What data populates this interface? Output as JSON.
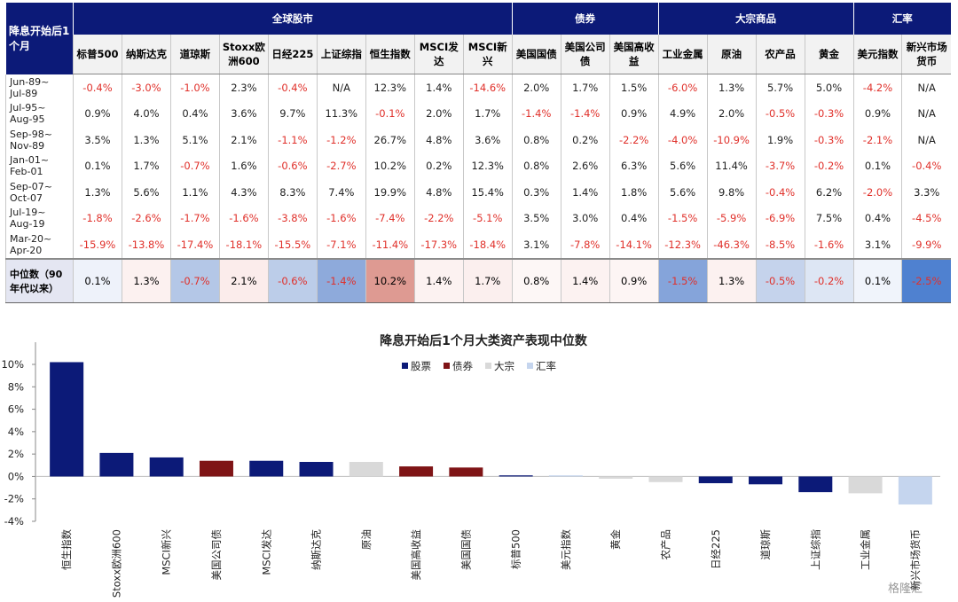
{
  "table": {
    "corner": "降息开始后1个月",
    "groups": [
      {
        "label": "全球股市",
        "columns": [
          "标普500",
          "纳斯达克",
          "道琼斯",
          "Stoxx欧洲600",
          "日经225",
          "上证综指",
          "恒生指数",
          "MSCI发达",
          "MSCI新兴"
        ]
      },
      {
        "label": "债券",
        "columns": [
          "美国国债",
          "美国公司债",
          "美国高收益"
        ]
      },
      {
        "label": "大宗商品",
        "columns": [
          "工业金属",
          "原油",
          "农产品",
          "黄金"
        ]
      },
      {
        "label": "汇率",
        "columns": [
          "美元指数",
          "新兴市场货币"
        ]
      }
    ],
    "rows": [
      {
        "label": "Jun-89~\nJul-89",
        "cells": [
          "-0.4%",
          "-3.0%",
          "-1.0%",
          "2.3%",
          "-0.4%",
          "N/A",
          "12.3%",
          "1.4%",
          "-14.6%",
          "2.0%",
          "1.7%",
          "1.5%",
          "-6.0%",
          "1.3%",
          "5.7%",
          "5.0%",
          "-4.2%",
          "N/A"
        ]
      },
      {
        "label": "Jul-95~\nAug-95",
        "cells": [
          "0.9%",
          "4.0%",
          "0.4%",
          "3.6%",
          "9.7%",
          "11.3%",
          "-0.1%",
          "2.0%",
          "1.7%",
          "-1.4%",
          "-1.4%",
          "0.9%",
          "4.9%",
          "2.0%",
          "-0.5%",
          "-0.3%",
          "0.9%",
          "N/A"
        ]
      },
      {
        "label": "Sep-98~\nNov-89",
        "cells": [
          "3.5%",
          "1.3%",
          "5.1%",
          "2.1%",
          "-1.1%",
          "-1.2%",
          "26.7%",
          "4.8%",
          "3.6%",
          "0.8%",
          "0.2%",
          "-2.2%",
          "-4.0%",
          "-10.9%",
          "1.9%",
          "-0.3%",
          "-2.1%",
          "N/A"
        ]
      },
      {
        "label": "Jan-01~\nFeb-01",
        "cells": [
          "0.1%",
          "1.7%",
          "-0.7%",
          "1.6%",
          "-0.6%",
          "-2.7%",
          "10.2%",
          "0.2%",
          "12.3%",
          "0.8%",
          "2.6%",
          "6.3%",
          "5.6%",
          "11.4%",
          "-3.7%",
          "-0.2%",
          "0.1%",
          "-0.4%"
        ]
      },
      {
        "label": "Sep-07~\nOct-07",
        "cells": [
          "1.3%",
          "5.6%",
          "1.1%",
          "4.3%",
          "8.3%",
          "7.4%",
          "19.9%",
          "4.8%",
          "15.4%",
          "0.3%",
          "1.4%",
          "1.8%",
          "5.6%",
          "9.8%",
          "-0.4%",
          "6.2%",
          "-2.0%",
          "3.3%"
        ]
      },
      {
        "label": "Jul-19~\nAug-19",
        "cells": [
          "-1.8%",
          "-2.6%",
          "-1.7%",
          "-1.6%",
          "-3.8%",
          "-1.6%",
          "-7.4%",
          "-2.2%",
          "-5.1%",
          "3.5%",
          "3.0%",
          "0.4%",
          "-1.5%",
          "-5.9%",
          "-6.9%",
          "7.5%",
          "0.4%",
          "-4.5%"
        ]
      },
      {
        "label": "Mar-20~\nApr-20",
        "cells": [
          "-15.9%",
          "-13.8%",
          "-17.4%",
          "-18.1%",
          "-15.5%",
          "-7.1%",
          "-11.4%",
          "-17.3%",
          "-18.4%",
          "3.1%",
          "-7.8%",
          "-14.1%",
          "-12.3%",
          "-46.3%",
          "-8.5%",
          "-1.6%",
          "3.1%",
          "-9.9%"
        ]
      }
    ],
    "median": {
      "label": "中位数（90年代以来）",
      "cells": [
        "0.1%",
        "1.3%",
        "-0.7%",
        "2.1%",
        "-0.6%",
        "-1.4%",
        "10.2%",
        "1.4%",
        "1.7%",
        "0.8%",
        "1.4%",
        "0.9%",
        "-1.5%",
        "1.3%",
        "-0.5%",
        "-0.2%",
        "0.1%",
        "-2.5%"
      ],
      "colors": [
        "#eef2fa",
        "#fcf1f0",
        "#b4c7e7",
        "#fbeceb",
        "#bccde9",
        "#8eaadb",
        "#de9a92",
        "#fcf2f1",
        "#fbefee",
        "#fdf7f6",
        "#fcf2f1",
        "#fdf5f4",
        "#85a4da",
        "#fcf1f0",
        "#c5d3ec",
        "#dde6f4",
        "#f0f4fb",
        "#4f81d0"
      ]
    }
  },
  "chart_data": {
    "type": "bar",
    "title": "降息开始后1个月大类资产表现中位数",
    "legend": [
      {
        "name": "股票",
        "color": "#0c1a78"
      },
      {
        "name": "债券",
        "color": "#7f1416"
      },
      {
        "name": "大宗",
        "color": "#d9d9d9"
      },
      {
        "name": "汇率",
        "color": "#c5d5ee"
      }
    ],
    "categories": [
      "恒生指数",
      "Stoxx欧洲600",
      "MSCI新兴",
      "美国公司债",
      "MSCI发达",
      "纳斯达克",
      "原油",
      "美国高收益",
      "美国国债",
      "标普500",
      "美元指数",
      "黄金",
      "农产品",
      "日经225",
      "道琼斯",
      "上证综指",
      "工业金属",
      "新兴市场货币"
    ],
    "values": [
      10.2,
      2.1,
      1.7,
      1.4,
      1.4,
      1.3,
      1.3,
      0.9,
      0.8,
      0.1,
      0.1,
      -0.2,
      -0.5,
      -0.6,
      -0.7,
      -1.4,
      -1.5,
      -2.5
    ],
    "colors": [
      "#0c1a78",
      "#0c1a78",
      "#0c1a78",
      "#7f1416",
      "#0c1a78",
      "#0c1a78",
      "#d9d9d9",
      "#7f1416",
      "#7f1416",
      "#0c1a78",
      "#c5d5ee",
      "#d9d9d9",
      "#d9d9d9",
      "#0c1a78",
      "#0c1a78",
      "#0c1a78",
      "#d9d9d9",
      "#c5d5ee"
    ],
    "ylim": [
      -4,
      10
    ],
    "yticks": [
      {
        "value": -4,
        "label": "-4%"
      },
      {
        "value": -2,
        "label": "-2%"
      },
      {
        "value": 0,
        "label": "0%"
      },
      {
        "value": 2,
        "label": "2%"
      },
      {
        "value": 4,
        "label": "4%"
      },
      {
        "value": 6,
        "label": "6%"
      },
      {
        "value": 8,
        "label": "8%"
      },
      {
        "value": 10,
        "label": "10%"
      }
    ]
  },
  "watermark": "格隆汇"
}
